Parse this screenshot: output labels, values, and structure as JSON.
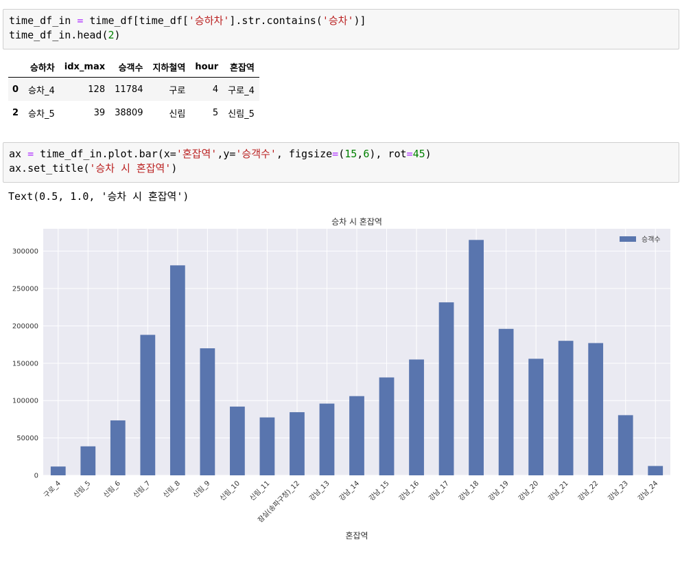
{
  "cell1": {
    "line1": {
      "a": "time_df_in",
      "b": " = ",
      "c": "time_df[time_df[",
      "d": "'승하차'",
      "e": "].str.contains(",
      "f": "'승차'",
      "g": ")]"
    },
    "line2": {
      "a": "time_df_in.head(",
      "b": "2",
      "c": ")"
    }
  },
  "table": {
    "columns": [
      "승하차",
      "idx_max",
      "승객수",
      "지하철역",
      "hour",
      "혼잡역"
    ],
    "rows": [
      {
        "index": "0",
        "cells": [
          "승차_4",
          "128",
          "11784",
          "구로",
          "4",
          "구로_4"
        ]
      },
      {
        "index": "2",
        "cells": [
          "승차_5",
          "39",
          "38809",
          "신림",
          "5",
          "신림_5"
        ]
      }
    ]
  },
  "cell2": {
    "line1": {
      "a": "ax",
      "b": " = ",
      "c": "time_df_in.plot.bar(x=",
      "d": "'혼잡역'",
      "e": ",y=",
      "f": "'승객수'",
      "g": ", figsize",
      "h": "=",
      "i": "(",
      "j": "15",
      "k": ",",
      "l": "6",
      "m": "), rot",
      "n": "=",
      "o": "45",
      "p": ")"
    },
    "line2": {
      "a": "ax.set_title(",
      "b": "'승차 시 혼잡역'",
      "c": ")"
    }
  },
  "output_text": "Text(0.5, 1.0, '승차 시 혼잡역')",
  "chart_data": {
    "type": "bar",
    "title": "승차 시 혼잡역",
    "xlabel": "혼잡역",
    "ylabel": "",
    "ylim": [
      0,
      330000
    ],
    "yticks": [
      0,
      50000,
      100000,
      150000,
      200000,
      250000,
      300000
    ],
    "legend": {
      "placement": "top-right"
    },
    "grid": true,
    "colors": {
      "bar": "#5975ae",
      "plot_bg": "#eaeaf2",
      "grid": "#ffffff"
    },
    "categories": [
      "구로_4",
      "신림_5",
      "신림_6",
      "신림_7",
      "신림_8",
      "신림_9",
      "신림_10",
      "신림_11",
      "잠실(송파구청)_12",
      "강남_13",
      "강남_14",
      "강남_15",
      "강남_16",
      "강남_17",
      "강남_18",
      "강남_19",
      "강남_20",
      "강남_21",
      "강남_22",
      "강남_23",
      "강남_24"
    ],
    "series": [
      {
        "name": "승객수",
        "values": [
          11784,
          38809,
          73500,
          188000,
          281000,
          170000,
          92000,
          77500,
          84500,
          96000,
          106000,
          131000,
          155000,
          231500,
          315000,
          196000,
          156000,
          180000,
          177000,
          80500,
          12500
        ]
      }
    ]
  }
}
